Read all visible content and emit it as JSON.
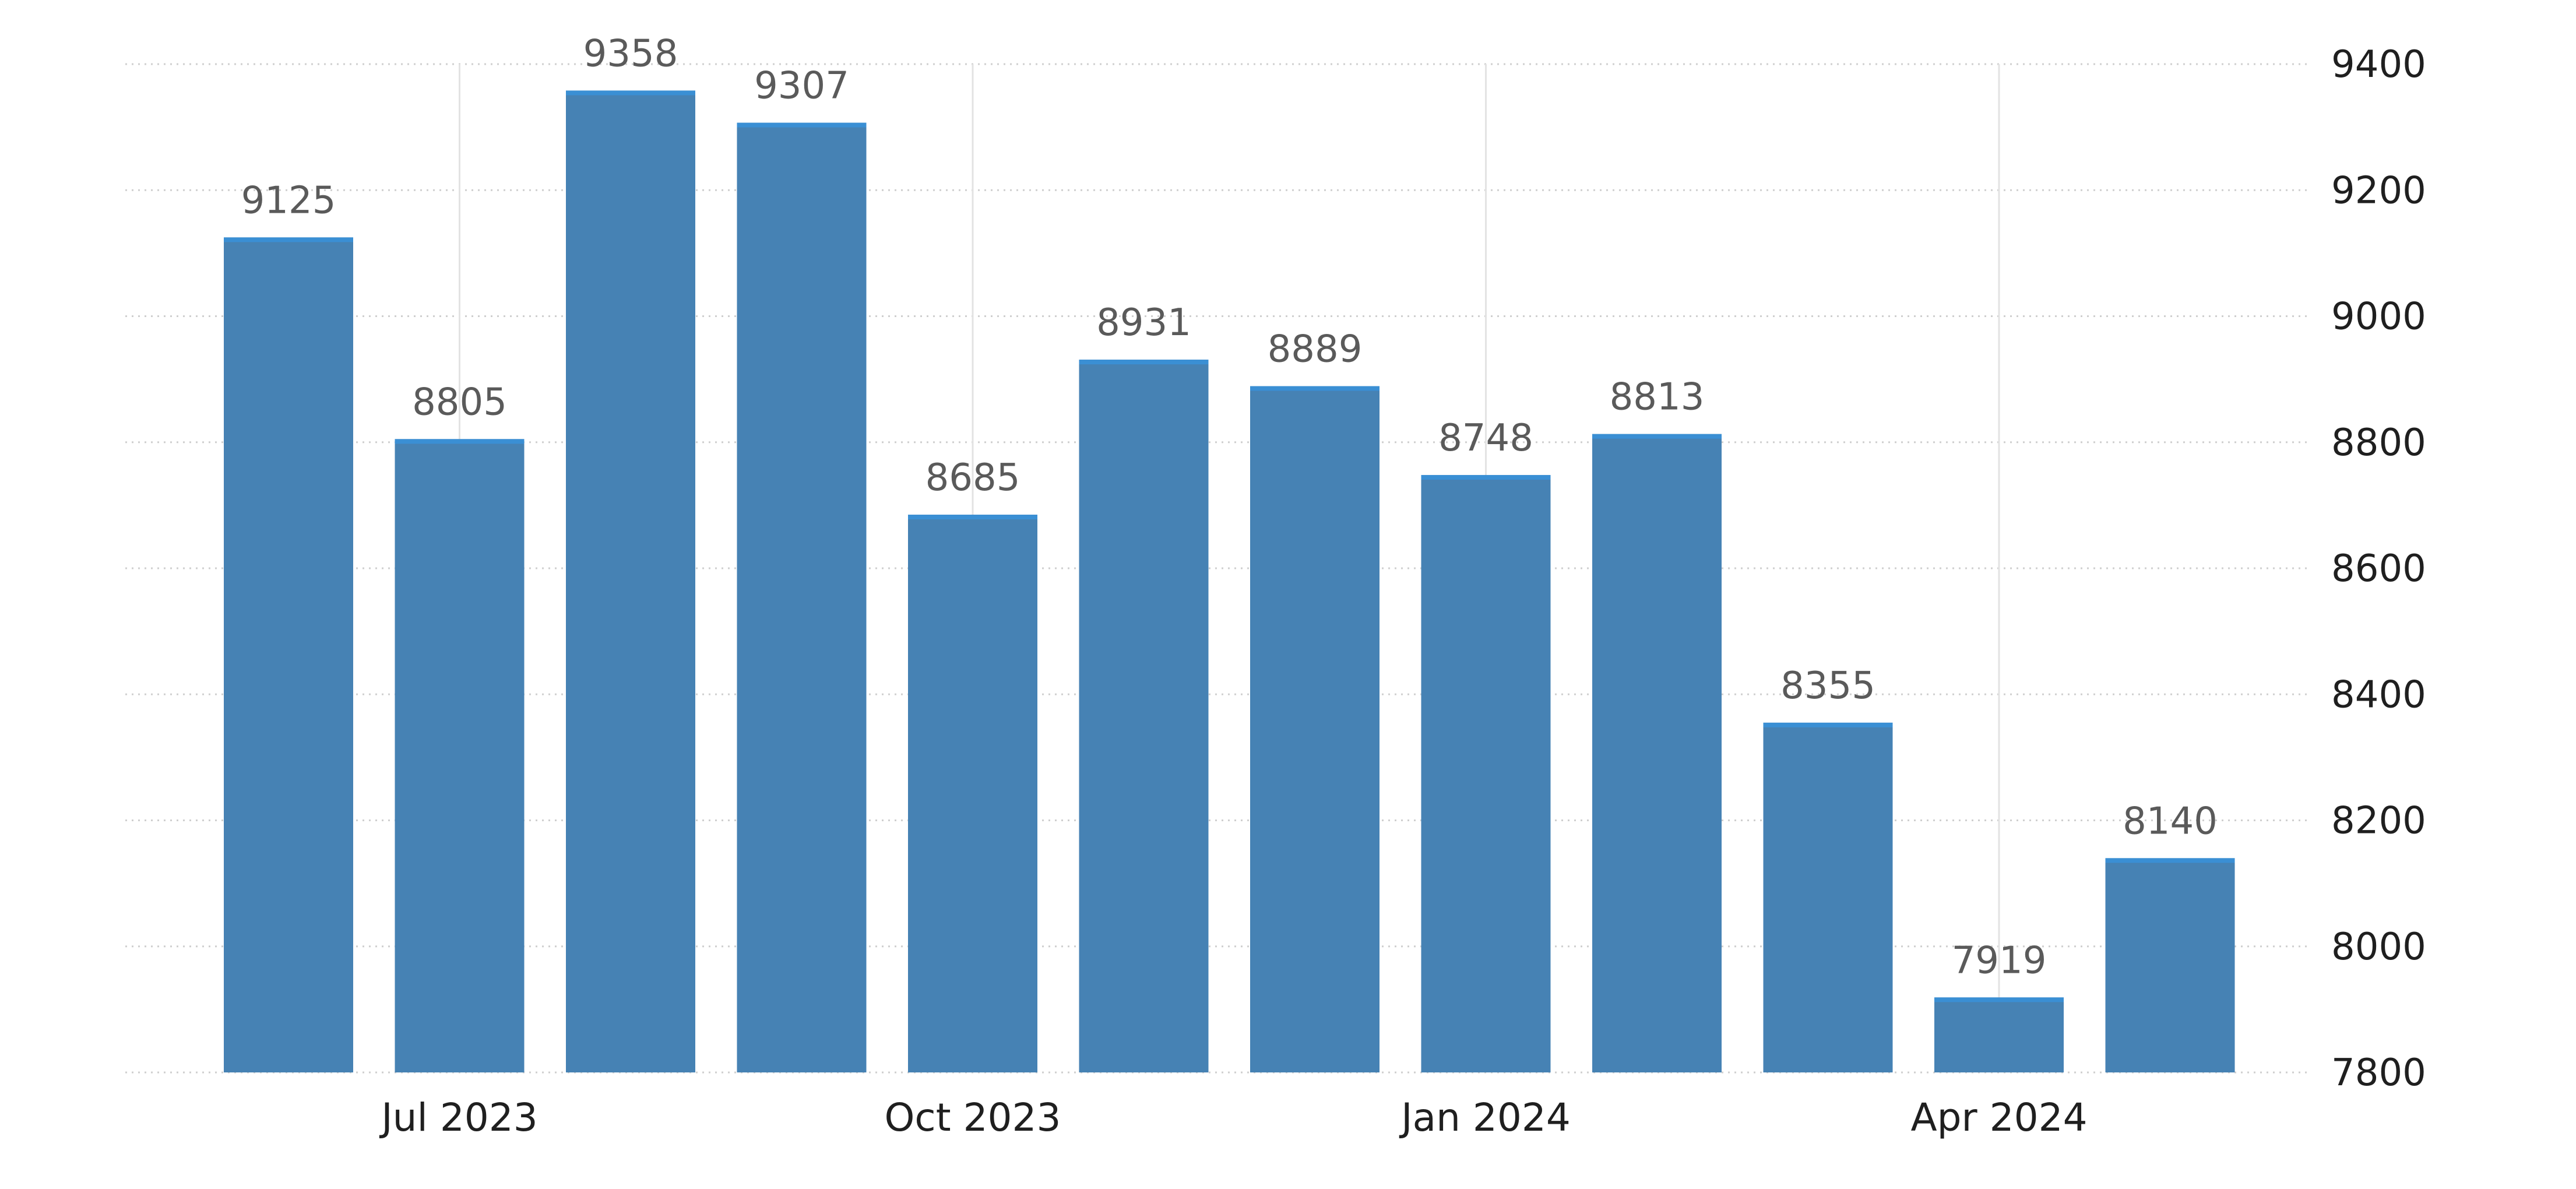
{
  "chart_data": {
    "type": "bar",
    "categories": [
      "Jun 2023",
      "Jul 2023",
      "Aug 2023",
      "Sep 2023",
      "Oct 2023",
      "Nov 2023",
      "Dec 2023",
      "Jan 2024",
      "Feb 2024",
      "Mar 2024",
      "Apr 2024",
      "May 2024"
    ],
    "values": [
      9125,
      8805,
      9358,
      9307,
      8685,
      8931,
      8889,
      8748,
      8813,
      8355,
      7919,
      8140
    ],
    "data_labels": [
      "9125",
      "8805",
      "9358",
      "9307",
      "8685",
      "8931",
      "8889",
      "8748",
      "8813",
      "8355",
      "7919",
      "8140"
    ],
    "x_tick_labels": [
      {
        "label": "Jul 2023",
        "category": "Jul 2023"
      },
      {
        "label": "Oct 2023",
        "category": "Oct 2023"
      },
      {
        "label": "Jan 2024",
        "category": "Jan 2024"
      },
      {
        "label": "Apr 2024",
        "category": "Apr 2024"
      }
    ],
    "y_ticks": [
      7800,
      8000,
      8200,
      8400,
      8600,
      8800,
      9000,
      9200,
      9400
    ],
    "ylim": [
      7800,
      9400
    ],
    "y_axis_position": "right",
    "grid": true,
    "title": "",
    "xlabel": "",
    "ylabel": "",
    "colors": {
      "bar": "#4682b4",
      "bar_top": "#3a8fd4",
      "grid": "#cfcfcf",
      "text": "#1f1f1f",
      "data_label": "#5a5a5a"
    }
  }
}
